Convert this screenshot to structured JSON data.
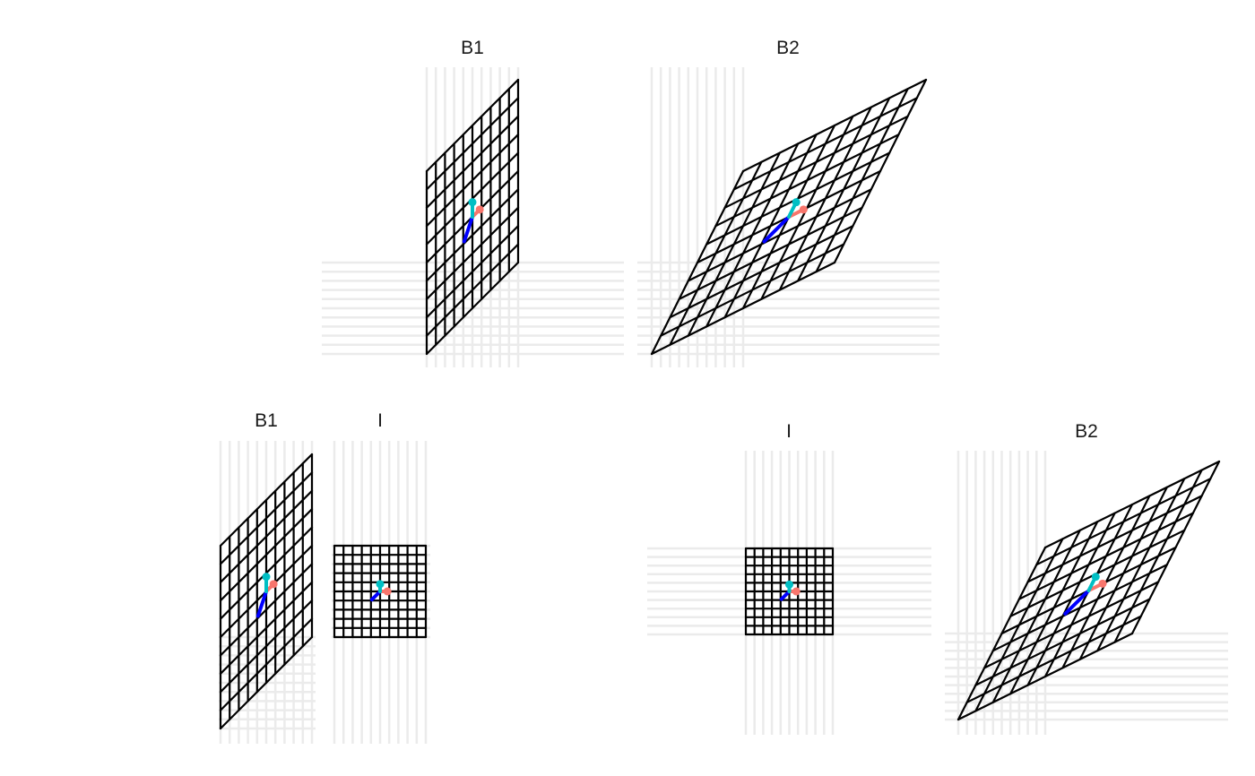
{
  "figure": {
    "panels": [
      {
        "id": "top-b1",
        "title": "B1",
        "matrix": [
          [
            1,
            0
          ],
          [
            1,
            2
          ]
        ]
      },
      {
        "id": "top-b2",
        "title": "B2",
        "matrix": [
          [
            2,
            1
          ],
          [
            1,
            2
          ]
        ]
      },
      {
        "id": "bottom-left-b1",
        "title": "B1",
        "matrix": [
          [
            1,
            0
          ],
          [
            1,
            2
          ]
        ]
      },
      {
        "id": "bottom-left-i",
        "title": "I",
        "matrix": [
          [
            1,
            0
          ],
          [
            0,
            1
          ]
        ]
      },
      {
        "id": "bottom-right-i",
        "title": "I",
        "matrix": [
          [
            1,
            0
          ],
          [
            0,
            1
          ]
        ]
      },
      {
        "id": "bottom-right-b2",
        "title": "B2",
        "matrix": [
          [
            2,
            1
          ],
          [
            1,
            2
          ]
        ]
      }
    ],
    "colors": {
      "background_lines": "#ebebeb",
      "grid": "#000000",
      "vector_x": "#f8766d",
      "vector_y": "#00bfc4",
      "vector_diag": "#0000ff"
    }
  }
}
